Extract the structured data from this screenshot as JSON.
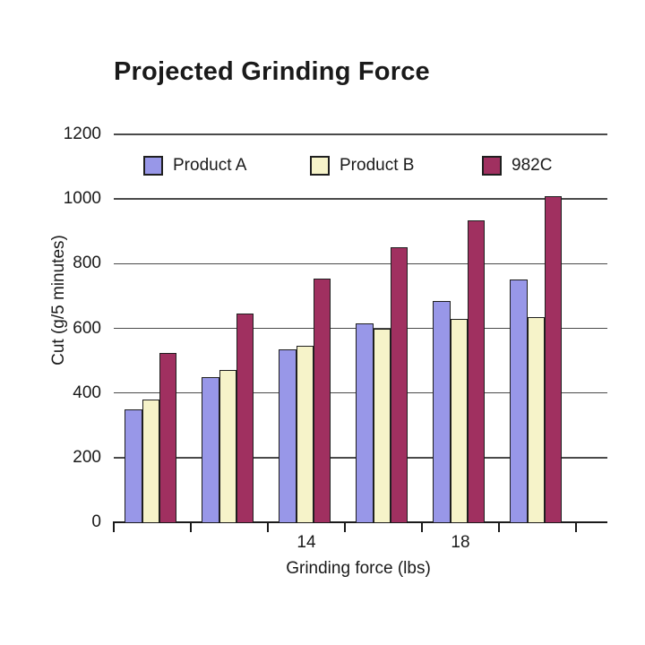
{
  "chart_data": {
    "type": "bar",
    "title": "Projected Grinding Force",
    "xlabel": "Grinding force (lbs)",
    "ylabel": "Cut (g/5 minutes)",
    "ylim": [
      0,
      1200
    ],
    "yticks": [
      0,
      200,
      400,
      600,
      800,
      1000,
      1200
    ],
    "grid": true,
    "legend_position": "top-inside",
    "categories": [
      "",
      "",
      "14",
      "",
      "18",
      ""
    ],
    "series": [
      {
        "name": "Product A",
        "color": "#9897e8",
        "values": [
          350,
          450,
          535,
          615,
          685,
          750
        ]
      },
      {
        "name": "Product B",
        "color": "#f6f3c9",
        "values": [
          380,
          470,
          545,
          600,
          630,
          635
        ]
      },
      {
        "name": "982C",
        "color": "#a03060",
        "values": [
          525,
          645,
          755,
          850,
          935,
          1010
        ]
      }
    ]
  }
}
